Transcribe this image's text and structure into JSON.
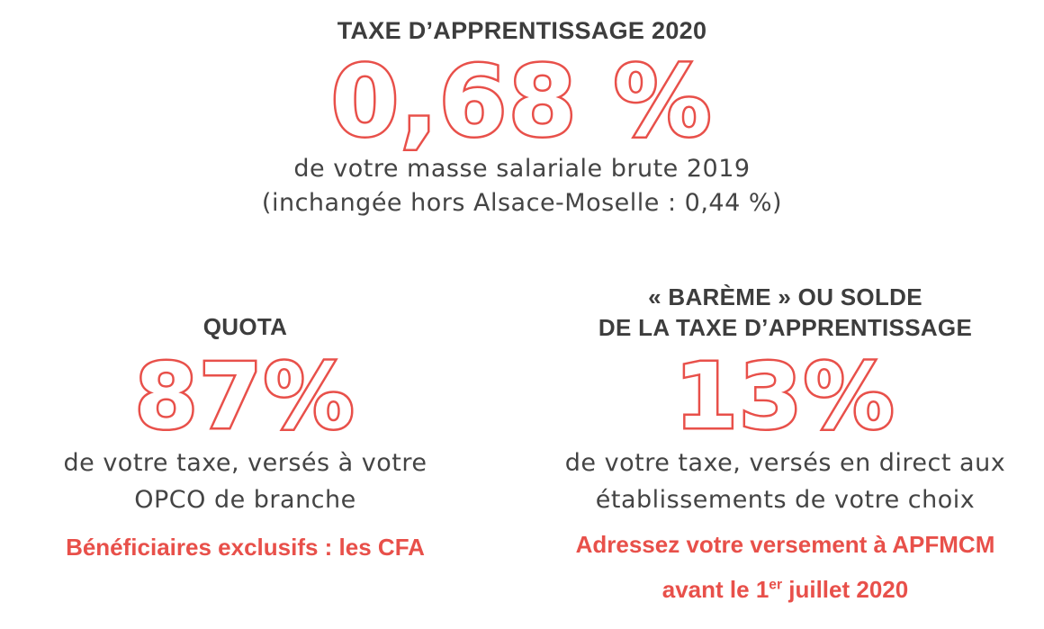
{
  "top": {
    "heading": "TAXE D’APPRENTISSAGE 2020",
    "value": "0,68 %",
    "desc_line1": "de votre masse salariale brute 2019",
    "desc_line2": "(inchangée hors Alsace-Moselle : 0,44 %)"
  },
  "left": {
    "heading": "QUOTA",
    "value": "87%",
    "desc_line1": "de votre taxe, versés à votre",
    "desc_line2": "OPCO de branche",
    "note": "Bénéficiaires exclusifs : les CFA"
  },
  "right": {
    "heading_line1": "« BARÈME » OU SOLDE",
    "heading_line2": "DE LA TAXE D’APPRENTISSAGE",
    "value": "13%",
    "desc_line1": "de votre taxe, versés en direct aux",
    "desc_line2": "établissements de votre choix",
    "note_line1": "Adressez votre versement à APFMCM",
    "note_line2_prefix": "avant le 1",
    "note_line2_sup": "er",
    "note_line2_suffix": " juillet 2020"
  },
  "colors": {
    "accent": "#e8504a",
    "text": "#3f3f3f",
    "background": "#ffffff"
  }
}
